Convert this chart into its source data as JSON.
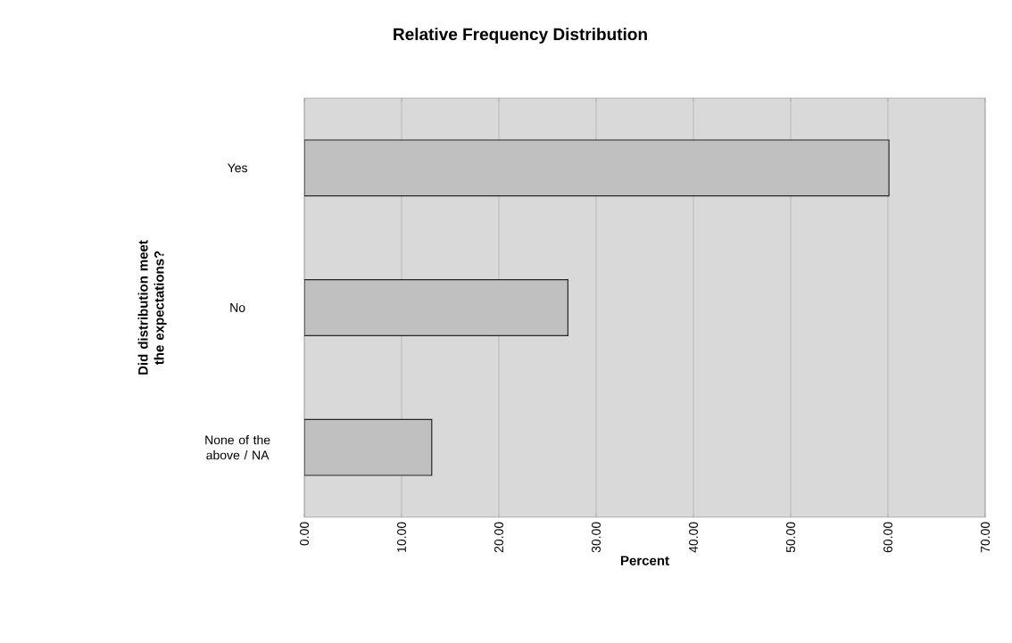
{
  "chart_data": {
    "type": "bar",
    "orientation": "horizontal",
    "title": "Relative Frequency Distribution",
    "xlabel": "Percent",
    "ylabel": "Did distribution meet the expectations?",
    "categories": [
      "Yes",
      "No",
      "None of the above / NA"
    ],
    "values": [
      60.1,
      27.1,
      13.1
    ],
    "color": "#c0c0c0",
    "xlim": [
      0,
      70
    ],
    "xticks": [
      {
        "value": 0,
        "label": "0.00"
      },
      {
        "value": 10,
        "label": "10.00"
      },
      {
        "value": 20,
        "label": "20.00"
      },
      {
        "value": 30,
        "label": "30.00"
      },
      {
        "value": 40,
        "label": "40.00"
      },
      {
        "value": 50,
        "label": "50.00"
      },
      {
        "value": 60,
        "label": "60.00"
      },
      {
        "value": 70,
        "label": "70.00"
      }
    ],
    "grid": "x"
  }
}
